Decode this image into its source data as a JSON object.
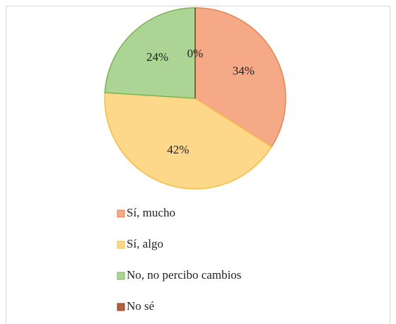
{
  "chart_data": {
    "type": "pie",
    "categories": [
      "Sí, mucho",
      "Sí, algo",
      "No, no percibo cambios",
      "No sé"
    ],
    "values": [
      34,
      42,
      24,
      0
    ],
    "value_labels": [
      "34%",
      "42%",
      "24%",
      "0%"
    ],
    "colors": [
      "#f5a987",
      "#fdd88a",
      "#acd495",
      "#b5603a"
    ],
    "edge_colors": [
      "#e8854f",
      "#f6bd45",
      "#7ab452",
      "#8b3f1e"
    ],
    "legend": "bottom"
  }
}
